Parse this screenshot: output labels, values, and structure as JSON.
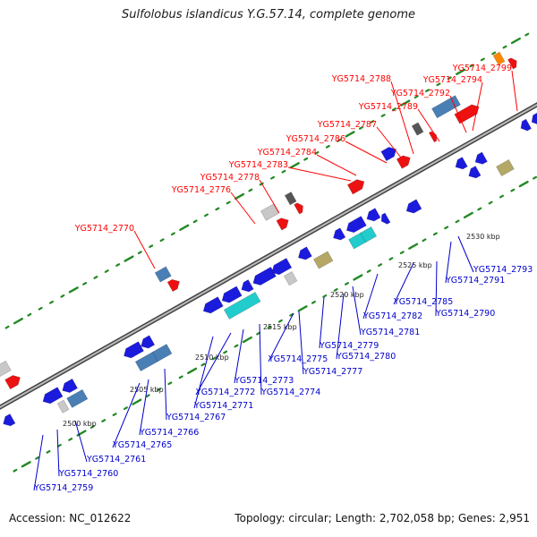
{
  "title": "Sulfolobus islandicus Y.G.57.14, complete genome",
  "footer": {
    "accession": "Accession: NC_012622",
    "summary": "Topology: circular; Length: 2,702,058 bp; Genes: 2,951"
  },
  "colors": {
    "forward_label": "#ff0000",
    "reverse_label": "#0000cc",
    "backbone": "#888888",
    "tick": "#228822",
    "gene_blue": "#1b1bdd",
    "gene_red": "#ee1111",
    "gene_steel": "#4a7fb5",
    "gene_cyan": "#22cccc",
    "gene_olive": "#b5a866",
    "gene_gray": "#c8c8c8",
    "gene_dark": "#555555",
    "gene_orange": "#ff8800"
  },
  "scale_labels": [
    "2500 kbp",
    "2505 kbp",
    "2510 kbp",
    "2515 kbp",
    "2520 kbp",
    "2525 kbp",
    "2530 kbp"
  ],
  "forward_genes": [
    "YG5714_2770",
    "YG5714_2776",
    "YG5714_2778",
    "YG5714_2783",
    "YG5714_2784",
    "YG5714_2786",
    "YG5714_2787",
    "YG5714_2788",
    "YG5714_2789",
    "YG5714_2792",
    "YG5714_2794",
    "YG5714_2799"
  ],
  "reverse_genes": [
    "YG5714_2759",
    "YG5714_2760",
    "YG5714_2761",
    "YG5714_2765",
    "YG5714_2766",
    "YG5714_2767",
    "YG5714_2771",
    "YG5714_2772",
    "YG5714_2773",
    "YG5714_2774",
    "YG5714_2775",
    "YG5714_2777",
    "YG5714_2779",
    "YG5714_2780",
    "YG5714_2781",
    "YG5714_2782",
    "YG5714_2785",
    "YG5714_2790",
    "YG5714_2791",
    "YG5714_2793"
  ]
}
